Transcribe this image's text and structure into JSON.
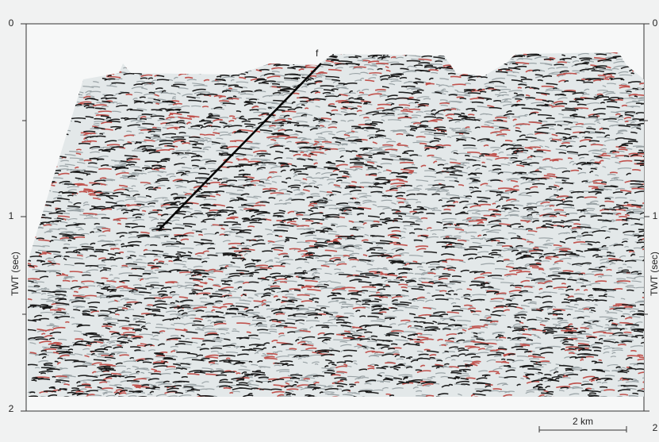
{
  "figure": {
    "axis_label": "TWT (sec)",
    "tick_labels": [
      "0",
      "1",
      "2"
    ],
    "fault_label": "f",
    "scale_bar": "2 km"
  }
}
